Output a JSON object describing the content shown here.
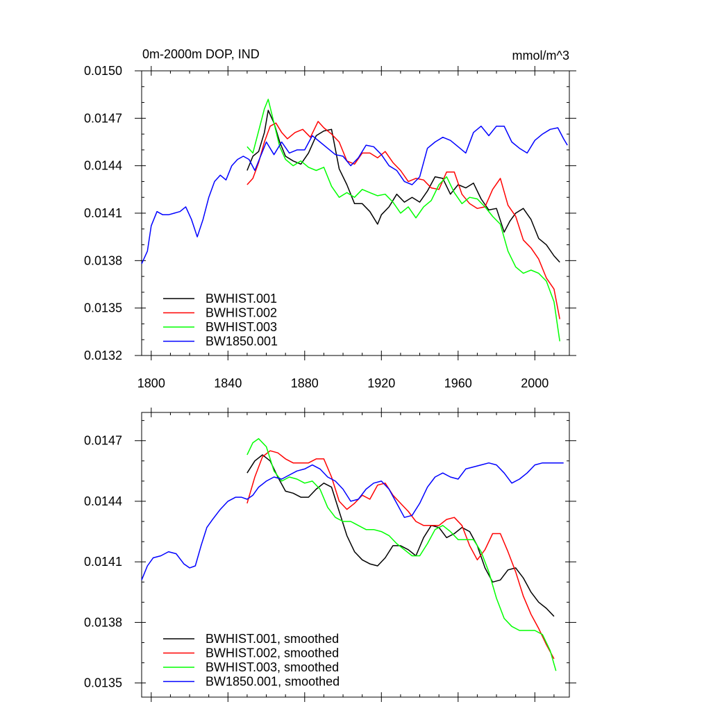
{
  "chart_data": [
    {
      "type": "line",
      "title": "0m-2000m DOP, IND",
      "units": "mmol/m^3",
      "xlabel": "",
      "ylabel": "",
      "xlim": [
        1795,
        2018
      ],
      "ylim": [
        0.0132,
        0.015
      ],
      "xticks": [
        1800,
        1840,
        1880,
        1920,
        1960,
        2000
      ],
      "xtick_labels": [
        "1800",
        "1840",
        "1880",
        "1920",
        "1960",
        "2000"
      ],
      "yticks": [
        0.0132,
        0.0135,
        0.0138,
        0.0141,
        0.0144,
        0.0147,
        0.015
      ],
      "ytick_labels": [
        "0.0132",
        "0.0135",
        "0.0138",
        "0.0141",
        "0.0144",
        "0.0147",
        "0.0150"
      ],
      "legend_position": "bottom-left",
      "series": [
        {
          "name": "BWHIST.001",
          "color": "#000000",
          "x": [
            1850,
            1853,
            1856,
            1859,
            1861,
            1864,
            1867,
            1870,
            1874,
            1878,
            1882,
            1886,
            1890,
            1894,
            1898,
            1902,
            1906,
            1910,
            1914,
            1918,
            1920,
            1924,
            1928,
            1932,
            1936,
            1940,
            1944,
            1948,
            1952,
            1956,
            1960,
            1964,
            1968,
            1972,
            1976,
            1980,
            1984,
            1987,
            1990,
            1994,
            1998,
            2002,
            2006,
            2010,
            2013
          ],
          "values": [
            0.01437,
            0.01446,
            0.01449,
            0.01461,
            0.01475,
            0.01467,
            0.01455,
            0.01446,
            0.01443,
            0.01441,
            0.01448,
            0.01459,
            0.01462,
            0.01463,
            0.01438,
            0.01428,
            0.01416,
            0.01416,
            0.01411,
            0.01403,
            0.01409,
            0.01414,
            0.01422,
            0.01417,
            0.0142,
            0.01417,
            0.01424,
            0.01433,
            0.01432,
            0.01422,
            0.01428,
            0.01426,
            0.01429,
            0.01419,
            0.01412,
            0.01413,
            0.01398,
            0.01405,
            0.0141,
            0.01413,
            0.01406,
            0.01394,
            0.0139,
            0.01383,
            0.01379
          ]
        },
        {
          "name": "BWHIST.002",
          "color": "#ff0000",
          "x": [
            1850,
            1853,
            1856,
            1859,
            1862,
            1865,
            1868,
            1871,
            1875,
            1879,
            1883,
            1887,
            1890,
            1894,
            1898,
            1902,
            1906,
            1910,
            1914,
            1918,
            1922,
            1926,
            1930,
            1934,
            1938,
            1942,
            1946,
            1950,
            1954,
            1958,
            1962,
            1966,
            1970,
            1974,
            1978,
            1982,
            1986,
            1990,
            1994,
            1998,
            2002,
            2006,
            2010,
            2013
          ],
          "values": [
            0.01428,
            0.01432,
            0.01442,
            0.01455,
            0.01465,
            0.01467,
            0.01461,
            0.01457,
            0.01461,
            0.01463,
            0.01458,
            0.01468,
            0.01464,
            0.0146,
            0.01455,
            0.01443,
            0.01441,
            0.01448,
            0.01448,
            0.01445,
            0.01449,
            0.01442,
            0.01437,
            0.0143,
            0.01432,
            0.01431,
            0.01426,
            0.01425,
            0.01436,
            0.01436,
            0.01422,
            0.01416,
            0.01413,
            0.01414,
            0.01425,
            0.01432,
            0.01415,
            0.01408,
            0.01393,
            0.01388,
            0.01381,
            0.01369,
            0.01362,
            0.01343
          ]
        },
        {
          "name": "BWHIST.003",
          "color": "#00ff00",
          "x": [
            1850,
            1853,
            1856,
            1859,
            1861,
            1864,
            1867,
            1870,
            1874,
            1878,
            1882,
            1886,
            1890,
            1894,
            1898,
            1902,
            1906,
            1910,
            1914,
            1918,
            1922,
            1926,
            1930,
            1934,
            1938,
            1942,
            1946,
            1950,
            1954,
            1958,
            1962,
            1966,
            1970,
            1974,
            1978,
            1982,
            1986,
            1990,
            1994,
            1998,
            2002,
            2006,
            2010,
            2013
          ],
          "values": [
            0.01452,
            0.01448,
            0.01462,
            0.01476,
            0.01482,
            0.01467,
            0.01452,
            0.01444,
            0.0144,
            0.01443,
            0.01439,
            0.01437,
            0.01439,
            0.01427,
            0.0142,
            0.01423,
            0.0142,
            0.01425,
            0.01423,
            0.01421,
            0.01422,
            0.01417,
            0.0141,
            0.01414,
            0.01407,
            0.01414,
            0.01418,
            0.01428,
            0.01433,
            0.01423,
            0.01416,
            0.0142,
            0.01419,
            0.01414,
            0.01408,
            0.01403,
            0.01386,
            0.01376,
            0.01372,
            0.01374,
            0.01372,
            0.01367,
            0.01354,
            0.01329
          ]
        },
        {
          "name": "BW1850.001",
          "color": "#0000ff",
          "x": [
            1795,
            1798,
            1800,
            1803,
            1806,
            1809,
            1812,
            1815,
            1818,
            1821,
            1824,
            1827,
            1830,
            1833,
            1836,
            1839,
            1842,
            1845,
            1848,
            1851,
            1854,
            1857,
            1860,
            1864,
            1868,
            1872,
            1876,
            1880,
            1884,
            1888,
            1892,
            1896,
            1900,
            1904,
            1908,
            1912,
            1916,
            1920,
            1924,
            1928,
            1932,
            1936,
            1940,
            1944,
            1948,
            1952,
            1956,
            1960,
            1964,
            1968,
            1972,
            1976,
            1980,
            1984,
            1988,
            1992,
            1996,
            2000,
            2004,
            2008,
            2012,
            2015,
            2017
          ],
          "values": [
            0.01378,
            0.01386,
            0.01402,
            0.01411,
            0.01409,
            0.01409,
            0.0141,
            0.01411,
            0.01414,
            0.01406,
            0.01395,
            0.01406,
            0.0142,
            0.0143,
            0.01434,
            0.01431,
            0.0144,
            0.01444,
            0.01446,
            0.01444,
            0.01437,
            0.01446,
            0.01455,
            0.01447,
            0.01455,
            0.01448,
            0.0145,
            0.0145,
            0.01459,
            0.01455,
            0.01451,
            0.01447,
            0.01446,
            0.0144,
            0.01445,
            0.01453,
            0.01452,
            0.01447,
            0.0144,
            0.01437,
            0.0143,
            0.01428,
            0.01433,
            0.01451,
            0.01455,
            0.01458,
            0.01456,
            0.01452,
            0.01448,
            0.01461,
            0.01465,
            0.01459,
            0.01465,
            0.01465,
            0.01455,
            0.01451,
            0.01448,
            0.01456,
            0.0146,
            0.01463,
            0.01464,
            0.01457,
            0.01453
          ]
        }
      ]
    },
    {
      "type": "line",
      "title": "",
      "xlabel": "",
      "ylabel": "",
      "xlim": [
        1795,
        2018
      ],
      "ylim": [
        0.01343,
        0.01484
      ],
      "xticks": [
        1800,
        1840,
        1880,
        1920,
        1960,
        2000
      ],
      "yticks": [
        0.0135,
        0.0138,
        0.0141,
        0.0144,
        0.0147
      ],
      "ytick_labels": [
        "0.0135",
        "0.0138",
        "0.0141",
        "0.0144",
        "0.0147"
      ],
      "legend_position": "bottom-left",
      "series": [
        {
          "name": "BWHIST.001, smoothed",
          "color": "#000000",
          "x": [
            1850,
            1854,
            1858,
            1862,
            1866,
            1870,
            1874,
            1878,
            1882,
            1886,
            1890,
            1894,
            1898,
            1902,
            1906,
            1910,
            1914,
            1918,
            1922,
            1926,
            1930,
            1934,
            1938,
            1942,
            1946,
            1950,
            1954,
            1958,
            1962,
            1966,
            1970,
            1974,
            1978,
            1982,
            1986,
            1990,
            1994,
            1998,
            2002,
            2006,
            2010
          ],
          "values": [
            0.01454,
            0.0146,
            0.01463,
            0.0146,
            0.01452,
            0.01445,
            0.01444,
            0.01442,
            0.01442,
            0.01446,
            0.01449,
            0.01447,
            0.01435,
            0.01423,
            0.01415,
            0.01411,
            0.01409,
            0.01408,
            0.01412,
            0.01418,
            0.01418,
            0.01416,
            0.01413,
            0.01422,
            0.01428,
            0.01427,
            0.01422,
            0.01424,
            0.01427,
            0.01425,
            0.01418,
            0.01407,
            0.014,
            0.01401,
            0.01406,
            0.01407,
            0.01402,
            0.01395,
            0.0139,
            0.01387,
            0.01383
          ]
        },
        {
          "name": "BWHIST.002, smoothed",
          "color": "#ff0000",
          "x": [
            1850,
            1854,
            1858,
            1862,
            1866,
            1870,
            1874,
            1878,
            1882,
            1886,
            1890,
            1894,
            1898,
            1902,
            1906,
            1910,
            1914,
            1918,
            1922,
            1926,
            1930,
            1934,
            1938,
            1942,
            1946,
            1950,
            1954,
            1958,
            1962,
            1966,
            1970,
            1974,
            1978,
            1982,
            1986,
            1990,
            1994,
            1998,
            2002,
            2006,
            2010
          ],
          "values": [
            0.01439,
            0.01452,
            0.01462,
            0.01465,
            0.01464,
            0.01461,
            0.01459,
            0.01459,
            0.01459,
            0.01461,
            0.01461,
            0.01452,
            0.0144,
            0.01436,
            0.01439,
            0.01443,
            0.01441,
            0.01448,
            0.01449,
            0.01443,
            0.01439,
            0.01435,
            0.0143,
            0.01428,
            0.01428,
            0.01428,
            0.01431,
            0.01432,
            0.01428,
            0.01418,
            0.01411,
            0.01416,
            0.01424,
            0.01424,
            0.01415,
            0.01405,
            0.01393,
            0.01384,
            0.01377,
            0.01369,
            0.01362
          ]
        },
        {
          "name": "BWHIST.003, smoothed",
          "color": "#00ff00",
          "x": [
            1850,
            1853,
            1856,
            1860,
            1864,
            1868,
            1872,
            1876,
            1880,
            1884,
            1888,
            1892,
            1896,
            1900,
            1904,
            1908,
            1912,
            1916,
            1920,
            1924,
            1928,
            1932,
            1936,
            1940,
            1944,
            1948,
            1952,
            1956,
            1960,
            1964,
            1968,
            1972,
            1976,
            1980,
            1984,
            1988,
            1992,
            1996,
            2000,
            2004,
            2008,
            2011
          ],
          "values": [
            0.01463,
            0.01469,
            0.01471,
            0.01467,
            0.01455,
            0.0145,
            0.01452,
            0.01451,
            0.01449,
            0.0145,
            0.01446,
            0.01437,
            0.01432,
            0.0143,
            0.0143,
            0.01428,
            0.01426,
            0.01426,
            0.01425,
            0.01423,
            0.01419,
            0.01416,
            0.01413,
            0.01413,
            0.01419,
            0.01426,
            0.01428,
            0.01425,
            0.01421,
            0.01421,
            0.01421,
            0.01415,
            0.01405,
            0.01392,
            0.01382,
            0.01378,
            0.01376,
            0.01376,
            0.01376,
            0.01374,
            0.01366,
            0.01356
          ]
        },
        {
          "name": "BW1850.001, smoothed",
          "color": "#0000ff",
          "x": [
            1795,
            1798,
            1801,
            1805,
            1809,
            1813,
            1817,
            1820,
            1823,
            1826,
            1829,
            1832,
            1836,
            1840,
            1844,
            1847,
            1850,
            1853,
            1856,
            1860,
            1864,
            1868,
            1872,
            1876,
            1880,
            1884,
            1888,
            1892,
            1896,
            1900,
            1904,
            1908,
            1912,
            1916,
            1920,
            1924,
            1928,
            1932,
            1936,
            1940,
            1944,
            1948,
            1952,
            1956,
            1960,
            1964,
            1968,
            1972,
            1976,
            1980,
            1984,
            1988,
            1992,
            1996,
            2000,
            2004,
            2008,
            2012,
            2015
          ],
          "values": [
            0.01401,
            0.01408,
            0.01412,
            0.01413,
            0.01415,
            0.01414,
            0.01409,
            0.01407,
            0.01408,
            0.01418,
            0.01427,
            0.01431,
            0.01436,
            0.0144,
            0.01442,
            0.01442,
            0.01441,
            0.01443,
            0.01447,
            0.0145,
            0.01452,
            0.01451,
            0.01453,
            0.01455,
            0.01456,
            0.01458,
            0.01456,
            0.01452,
            0.0145,
            0.01446,
            0.0144,
            0.01441,
            0.01446,
            0.01449,
            0.0145,
            0.01446,
            0.01439,
            0.01432,
            0.01433,
            0.01439,
            0.01447,
            0.01452,
            0.01454,
            0.01452,
            0.01451,
            0.01456,
            0.01457,
            0.01458,
            0.01459,
            0.01458,
            0.01454,
            0.01449,
            0.01451,
            0.01454,
            0.01458,
            0.01459,
            0.01459,
            0.01459,
            0.01459
          ]
        }
      ]
    }
  ]
}
